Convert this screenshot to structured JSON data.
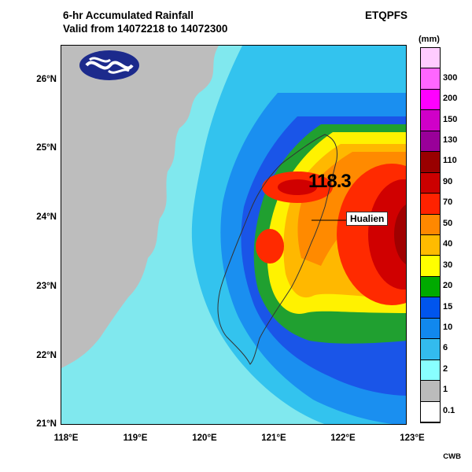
{
  "header": {
    "title_line1": "6-hr Accumulated Rainfall",
    "title_line2": "Valid from 14072218 to 14072300",
    "model": "ETQPFS"
  },
  "map": {
    "lat_labels": [
      "26°N",
      "25°N",
      "24°N",
      "23°N",
      "22°N",
      "21°N"
    ],
    "lon_labels": [
      "118°E",
      "119°E",
      "120°E",
      "121°E",
      "122°E",
      "123°E"
    ],
    "max_value": "118.3",
    "place_label": "Hualien",
    "colors": {
      "ocean_light": "#80e8ee",
      "land_mainland": "#bdbdbd",
      "rain_6": "#33c3ee",
      "rain_10": "#1a8ff0",
      "rain_15": "#1a55e8",
      "rain_20": "#20a030",
      "rain_30": "#fff200",
      "rain_40": "#ffb800",
      "rain_50": "#ff8a00",
      "rain_70": "#ff2a00",
      "rain_90": "#d00000",
      "rain_110": "#a00000"
    }
  },
  "colorbar": {
    "unit": "(mm)",
    "levels": [
      {
        "label": "",
        "color": "#ffccff"
      },
      {
        "label": "300",
        "color": "#ff66ff"
      },
      {
        "label": "200",
        "color": "#ff00ff"
      },
      {
        "label": "150",
        "color": "#d000c8"
      },
      {
        "label": "130",
        "color": "#990099"
      },
      {
        "label": "110",
        "color": "#990000"
      },
      {
        "label": "90",
        "color": "#cc0000"
      },
      {
        "label": "70",
        "color": "#ff2200"
      },
      {
        "label": "50",
        "color": "#ff8800"
      },
      {
        "label": "40",
        "color": "#ffbb00"
      },
      {
        "label": "30",
        "color": "#ffff00"
      },
      {
        "label": "20",
        "color": "#00aa00"
      },
      {
        "label": "15",
        "color": "#0055ee"
      },
      {
        "label": "10",
        "color": "#1188ee"
      },
      {
        "label": "6",
        "color": "#33bbee"
      },
      {
        "label": "2",
        "color": "#88ffff"
      },
      {
        "label": "1",
        "color": "#bbbbbb"
      },
      {
        "label": "0.1",
        "color": "#ffffff"
      }
    ]
  },
  "footer": {
    "credit": "CWB"
  }
}
